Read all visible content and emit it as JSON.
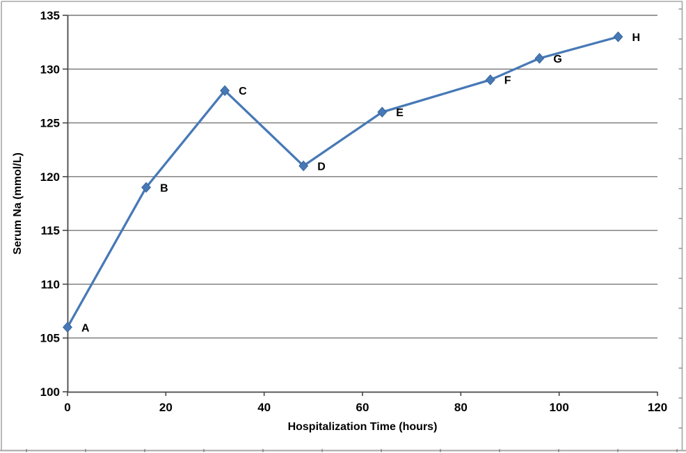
{
  "figure": {
    "background": "#ffffff",
    "frame_color": "#a6a6a6",
    "frame_tick_color": "#8c8c8c"
  },
  "chart_data": {
    "type": "line",
    "title": "",
    "xlabel": "Hospitalization Time (hours)",
    "ylabel": "Serum Na (mmol/L)",
    "xlim": [
      0,
      120
    ],
    "ylim": [
      100,
      135
    ],
    "x_ticks": [
      0,
      20,
      40,
      60,
      80,
      100,
      120
    ],
    "y_ticks": [
      100,
      105,
      110,
      115,
      120,
      125,
      130,
      135
    ],
    "grid": "horizontal",
    "legend": "none",
    "series": [
      {
        "name": "Serum Na",
        "color": "#4779B6",
        "marker": "diamond",
        "marker_edge_color": "#38659B",
        "x": [
          0,
          16,
          32,
          48,
          64,
          86,
          96,
          112
        ],
        "values": [
          106,
          119,
          128,
          121,
          126,
          129,
          131,
          133
        ],
        "point_labels": [
          "A",
          "B",
          "C",
          "D",
          "E",
          "F",
          "G",
          "H"
        ]
      }
    ],
    "colors": {
      "gridline": "#767676",
      "axis": "#474747",
      "text": "#000000"
    }
  }
}
